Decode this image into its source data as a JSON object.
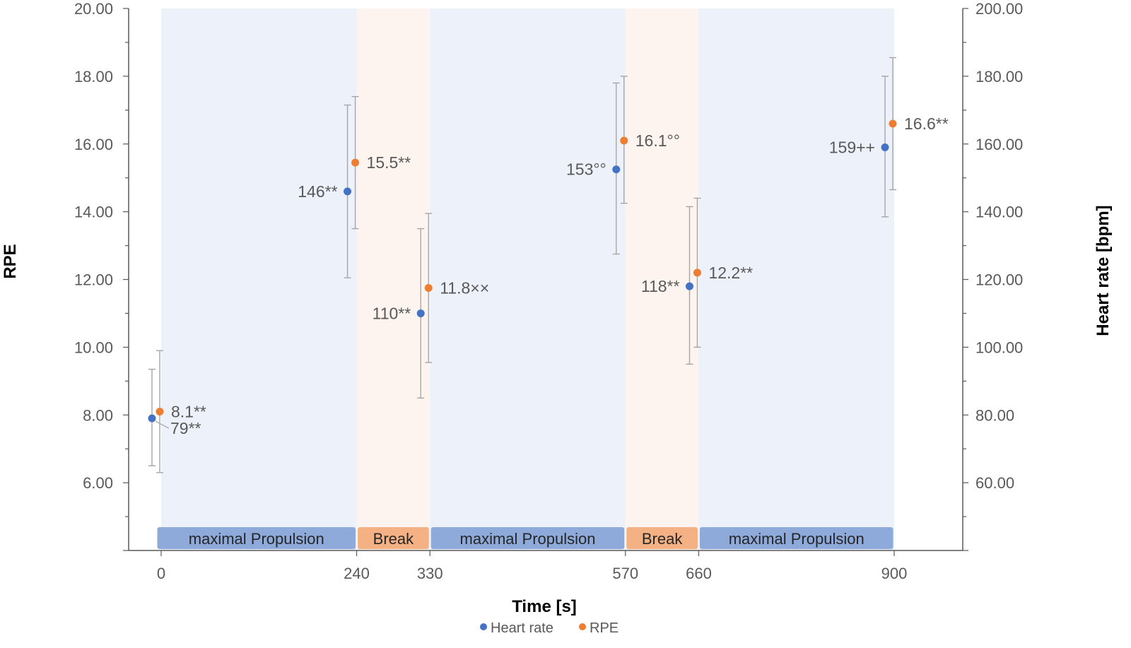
{
  "chart_data": {
    "type": "scatter",
    "xlabel": "Time [s]",
    "ylabel_left": "RPE",
    "ylabel_right": "Heart rate [bpm]",
    "x_ticks": [
      0,
      240,
      330,
      570,
      660,
      900
    ],
    "x_tick_labels": [
      "0",
      "240",
      "330",
      "570",
      "660",
      "900"
    ],
    "y_left_range": [
      4,
      20
    ],
    "y_left_ticks": [
      "6.00",
      "8.00",
      "10.00",
      "12.00",
      "14.00",
      "16.00",
      "18.00",
      "20.00"
    ],
    "y_right_range": [
      40,
      200
    ],
    "y_right_ticks": [
      "60.00",
      "80.00",
      "100.00",
      "120.00",
      "140.00",
      "160.00",
      "180.00",
      "200.00"
    ],
    "phases": [
      {
        "label": "maximal Propulsion",
        "start": 0,
        "end": 240,
        "kind": "propulsion"
      },
      {
        "label": "Break",
        "start": 240,
        "end": 330,
        "kind": "break"
      },
      {
        "label": "maximal Propulsion",
        "start": 330,
        "end": 570,
        "kind": "propulsion"
      },
      {
        "label": "Break",
        "start": 570,
        "end": 660,
        "kind": "break"
      },
      {
        "label": "maximal Propulsion",
        "start": 660,
        "end": 900,
        "kind": "propulsion"
      }
    ],
    "series": [
      {
        "name": "Heart rate",
        "color": "#4472c4",
        "axis": "right",
        "points": [
          {
            "x": 0,
            "y": 79,
            "err_low": 65,
            "err_high": 93.5,
            "label": "79**"
          },
          {
            "x": 240,
            "y": 146,
            "err_low": 120.5,
            "err_high": 171.5,
            "label": "146**"
          },
          {
            "x": 330,
            "y": 110,
            "err_low": 85,
            "err_high": 135,
            "label": "110**"
          },
          {
            "x": 570,
            "y": 152.5,
            "err_low": 127.5,
            "err_high": 178,
            "label": "153°°"
          },
          {
            "x": 660,
            "y": 118,
            "err_low": 95,
            "err_high": 141.5,
            "label": "118**"
          },
          {
            "x": 900,
            "y": 159,
            "err_low": 138.5,
            "err_high": 180,
            "label": "159++"
          }
        ]
      },
      {
        "name": "RPE",
        "color": "#ed7d31",
        "axis": "left",
        "points": [
          {
            "x": 0,
            "y": 8.1,
            "err_low": 6.3,
            "err_high": 9.9,
            "label": "8.1**"
          },
          {
            "x": 240,
            "y": 15.45,
            "err_low": 13.5,
            "err_high": 17.4,
            "label": "15.5**"
          },
          {
            "x": 330,
            "y": 11.75,
            "err_low": 9.55,
            "err_high": 13.95,
            "label": "11.8××"
          },
          {
            "x": 570,
            "y": 16.1,
            "err_low": 14.25,
            "err_high": 18.0,
            "label": "16.1°°"
          },
          {
            "x": 660,
            "y": 12.2,
            "err_low": 10.0,
            "err_high": 14.4,
            "label": "12.2**"
          },
          {
            "x": 900,
            "y": 16.6,
            "err_low": 14.65,
            "err_high": 18.55,
            "label": "16.6**"
          }
        ]
      }
    ],
    "legend": [
      "Heart rate",
      "RPE"
    ],
    "legend_position": "bottom",
    "colors": {
      "propulsion_bg": "#edf2fa",
      "break_bg": "#fdf4ef",
      "propulsion_bar": "#8eaadb",
      "break_bar": "#f4b183",
      "error_bar": "#a6a6a6",
      "axis": "#595959"
    }
  }
}
